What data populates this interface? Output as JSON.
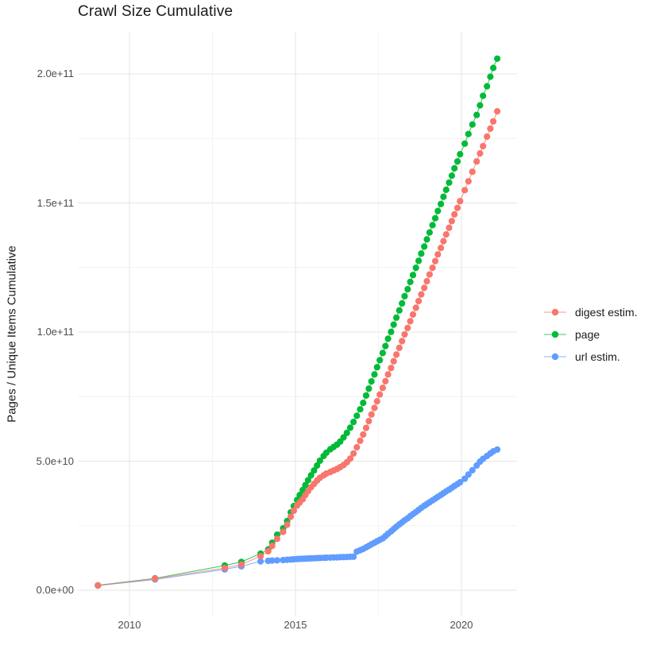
{
  "chart_data": {
    "type": "line",
    "title": "Crawl Size Cumulative",
    "xlabel": "",
    "ylabel": "Pages / Unique Items Cumulative",
    "legend_position": "right",
    "grid": "on",
    "background": "#ffffff",
    "gridline_major_color": "#e6e6e6",
    "gridline_minor_color": "#f2f2f2",
    "xlim": [
      2008.45,
      2021.68
    ],
    "ylim_e9": [
      -10.3,
      216.3
    ],
    "x_ticks": [
      2010,
      2015,
      2020
    ],
    "x_tick_labels": [
      "2010",
      "2015",
      "2020"
    ],
    "x_minor_ticks": [
      2012.5,
      2017.5
    ],
    "y_ticks_e9": [
      0,
      50,
      100,
      150,
      200
    ],
    "y_tick_labels": [
      "0.0e+00",
      "5.0e+10",
      "1.0e+11",
      "1.5e+11",
      "2.0e+11"
    ],
    "y_minor_ticks_e9": [
      25,
      75,
      125,
      175
    ],
    "unit_note": "values are cumulative counts in billions (1e9)",
    "x": [
      2009.05,
      2010.77,
      2012.87,
      2013.37,
      2013.95,
      2014.18,
      2014.3,
      2014.45,
      2014.63,
      2014.75,
      2014.86,
      2014.95,
      2015.05,
      2015.13,
      2015.22,
      2015.3,
      2015.38,
      2015.47,
      2015.56,
      2015.65,
      2015.74,
      2015.85,
      2015.93,
      2016.05,
      2016.15,
      2016.25,
      2016.35,
      2016.45,
      2016.55,
      2016.65,
      2016.75,
      2016.85,
      2016.95,
      2017.04,
      2017.13,
      2017.21,
      2017.29,
      2017.38,
      2017.46,
      2017.54,
      2017.63,
      2017.71,
      2017.79,
      2017.88,
      2017.96,
      2018.04,
      2018.13,
      2018.21,
      2018.29,
      2018.38,
      2018.46,
      2018.54,
      2018.63,
      2018.71,
      2018.79,
      2018.88,
      2018.96,
      2019.04,
      2019.13,
      2019.21,
      2019.29,
      2019.38,
      2019.46,
      2019.54,
      2019.63,
      2019.71,
      2019.79,
      2019.88,
      2019.96,
      2020.1,
      2020.21,
      2020.33,
      2020.46,
      2020.56,
      2020.65,
      2020.77,
      2020.87,
      2020.96,
      2021.08
    ],
    "series": [
      {
        "name": "digest estim.",
        "color": "#F8766D",
        "values_e9": [
          1.85,
          4.5,
          8.6,
          10.0,
          13.2,
          15.1,
          17.2,
          19.9,
          22.6,
          25.4,
          28.5,
          30.8,
          32.8,
          34.0,
          35.3,
          36.9,
          38.4,
          39.9,
          41.2,
          42.5,
          43.6,
          44.5,
          45.2,
          45.8,
          46.4,
          47.0,
          47.7,
          48.5,
          49.6,
          51.0,
          53.0,
          55.4,
          57.9,
          60.3,
          62.9,
          65.5,
          68.1,
          70.6,
          73.2,
          75.8,
          78.4,
          81.0,
          83.6,
          86.1,
          88.7,
          91.3,
          93.9,
          96.5,
          99.1,
          101.6,
          104.2,
          106.8,
          109.4,
          112.0,
          114.6,
          117.1,
          119.7,
          122.3,
          124.9,
          127.5,
          130.1,
          132.6,
          135.2,
          137.8,
          140.4,
          143.0,
          145.6,
          148.1,
          150.7,
          155.0,
          158.4,
          162.1,
          166.1,
          169.2,
          172.0,
          175.7,
          178.8,
          181.6,
          185.5
        ]
      },
      {
        "name": "page",
        "color": "#00BA38",
        "values_e9": [
          1.9,
          4.6,
          9.6,
          11.0,
          14.2,
          15.8,
          18.4,
          21.5,
          24.0,
          26.8,
          30.2,
          32.6,
          35.0,
          36.9,
          38.8,
          40.7,
          42.6,
          44.5,
          46.4,
          48.3,
          50.2,
          52.0,
          53.3,
          54.6,
          55.5,
          56.4,
          57.6,
          59.2,
          61.0,
          63.0,
          65.2,
          67.6,
          70.1,
          72.6,
          75.4,
          78.1,
          80.9,
          83.6,
          86.4,
          89.1,
          91.9,
          94.6,
          97.4,
          100.1,
          102.9,
          105.6,
          108.4,
          111.1,
          113.9,
          116.6,
          119.4,
          122.1,
          124.9,
          127.6,
          130.4,
          133.1,
          135.9,
          138.6,
          141.4,
          144.1,
          146.9,
          149.6,
          152.4,
          155.1,
          157.9,
          160.6,
          163.4,
          166.1,
          168.9,
          173.0,
          176.7,
          180.4,
          184.1,
          187.8,
          191.5,
          195.2,
          198.9,
          202.3,
          205.9
        ]
      },
      {
        "name": "url estim.",
        "color": "#619CFF",
        "values_e9": [
          1.8,
          4.2,
          8.1,
          9.3,
          11.2,
          11.4,
          11.5,
          11.6,
          11.7,
          11.8,
          11.9,
          12.0,
          12.1,
          12.15,
          12.2,
          12.25,
          12.3,
          12.35,
          12.4,
          12.45,
          12.5,
          12.55,
          12.6,
          12.65,
          12.7,
          12.75,
          12.8,
          12.85,
          12.9,
          12.95,
          13.0,
          15.0,
          15.5,
          16.0,
          16.6,
          17.2,
          17.8,
          18.4,
          19.0,
          19.5,
          20.1,
          21.0,
          21.9,
          22.8,
          23.7,
          24.6,
          25.5,
          26.3,
          27.1,
          27.9,
          28.7,
          29.5,
          30.3,
          31.1,
          31.9,
          32.7,
          33.4,
          34.1,
          34.8,
          35.5,
          36.2,
          36.9,
          37.6,
          38.3,
          39.0,
          39.7,
          40.4,
          41.1,
          41.8,
          43.2,
          44.8,
          46.5,
          48.3,
          49.8,
          50.9,
          52.0,
          53.0,
          53.8,
          54.5
        ]
      }
    ],
    "draw_order": [
      2,
      1,
      0
    ]
  }
}
